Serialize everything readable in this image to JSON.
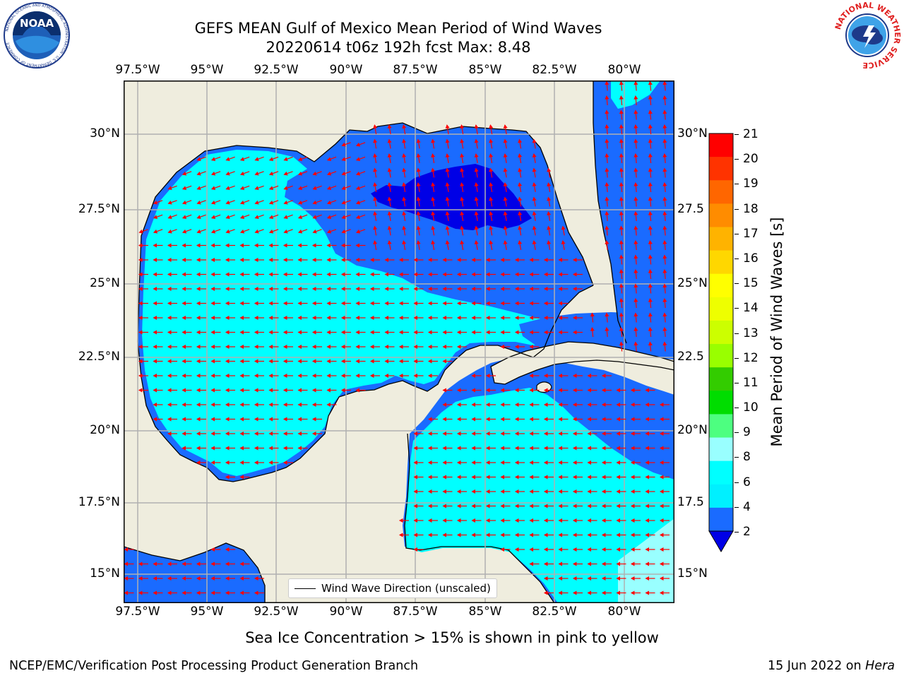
{
  "header": {
    "title_line1": "GEFS MEAN Gulf of Mexico Mean Period of Wind Waves",
    "title_line2": "20220614 t06z 192h fcst   Max: 8.48"
  },
  "logos": {
    "left": {
      "name": "NOAA",
      "ring_text": "NATIONAL OCEANIC AND ATMOSPHERIC ADMINISTRATION  ·  U.S. DEPARTMENT OF COMMERCE"
    },
    "right": {
      "ring_text": "NATIONAL WEATHER SERVICE"
    }
  },
  "map": {
    "lon_ticks": [
      "97.5°W",
      "95°W",
      "92.5°W",
      "90°W",
      "87.5°W",
      "85°W",
      "82.5°W",
      "80°W"
    ],
    "lat_ticks": [
      "30°N",
      "27.5°N",
      "25°N",
      "22.5°N",
      "20°N",
      "17.5°N",
      "15°N"
    ],
    "lat_ticks_right": [
      "30°N",
      "27.5",
      "25°N",
      "22.5",
      "20°N",
      "17.5",
      "15°N"
    ],
    "colors": {
      "land": "#efedde",
      "water_deep": "#0000e6",
      "water_blue": "#1a6bff",
      "water_cyan": "#00ffff",
      "water_lightcyan": "#99ffff",
      "arrows": "#ff0000",
      "grid": "#b0b0b0"
    },
    "legend_label": "Wind Wave Direction (unscaled)"
  },
  "colorbar": {
    "label": "Mean Period of Wind Waves [s]",
    "ticks": [
      "21",
      "20",
      "19",
      "18",
      "17",
      "16",
      "15",
      "14",
      "13",
      "12",
      "11",
      "10",
      "9",
      "8",
      "6",
      "4",
      "2"
    ],
    "colors": [
      "#ff0000",
      "#ff3300",
      "#ff6600",
      "#ff8c00",
      "#ffb300",
      "#ffd700",
      "#ffff00",
      "#eeff00",
      "#ccff00",
      "#99ff00",
      "#33cc00",
      "#00dd00",
      "#4dff80",
      "#99ffff",
      "#00ffff",
      "#00f0ff",
      "#1a6bff"
    ],
    "extend_color": "#0000e6"
  },
  "notes": {
    "sea_ice": "Sea Ice Concentration > 15% is shown in pink to yellow"
  },
  "footer": {
    "left": "NCEP/EMC/Verification Post Processing Product Generation Branch",
    "right_date": "15 Jun 2022 on ",
    "right_host": "Hera"
  }
}
